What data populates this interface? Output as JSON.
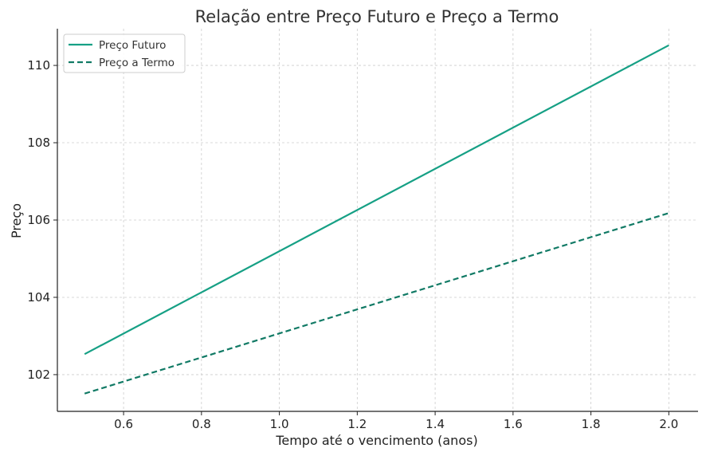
{
  "chart_data": {
    "type": "line",
    "title": "Relação entre Preço Futuro e Preço a Termo",
    "xlabel": "Tempo até o vencimento (anos)",
    "ylabel": "Preço",
    "xlim": [
      0.43,
      2.075
    ],
    "ylim": [
      101.05,
      110.95
    ],
    "xticks": [
      0.6,
      0.8,
      1.0,
      1.2,
      1.4,
      1.6,
      1.8,
      2.0
    ],
    "xtick_labels": [
      "0.6",
      "0.8",
      "1.0",
      "1.2",
      "1.4",
      "1.6",
      "1.8",
      "2.0"
    ],
    "yticks": [
      102,
      104,
      106,
      108,
      110
    ],
    "ytick_labels": [
      "102",
      "104",
      "106",
      "108",
      "110"
    ],
    "grid": true,
    "legend_position": "top-left",
    "series": [
      {
        "name": "Preço Futuro",
        "style": "solid",
        "color": "#16a085",
        "x": [
          0.5,
          2.0
        ],
        "y": [
          102.53,
          110.52
        ]
      },
      {
        "name": "Preço a Termo",
        "style": "dashed",
        "color": "#117a65",
        "x": [
          0.5,
          2.0
        ],
        "y": [
          101.51,
          106.18
        ]
      }
    ]
  }
}
